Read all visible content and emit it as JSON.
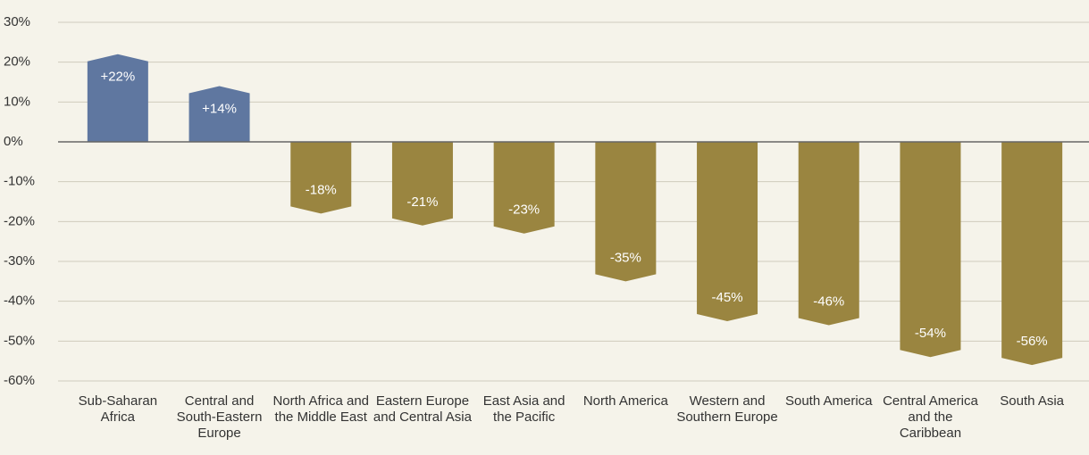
{
  "chart_data": {
    "type": "bar",
    "categories": [
      "Sub-Saharan Africa",
      "Central and South-Eastern Europe",
      "North Africa and the Middle East",
      "Eastern Europe and Central Asia",
      "East Asia and the Pacific",
      "North America",
      "Western and Southern Europe",
      "South America",
      "Central America and the Caribbean",
      "South Asia"
    ],
    "values": [
      22,
      14,
      -18,
      -21,
      -23,
      -35,
      -45,
      -46,
      -54,
      -56
    ],
    "value_labels": [
      "+22%",
      "+14%",
      "-18%",
      "-21%",
      "-23%",
      "-35%",
      "-45%",
      "-46%",
      "-54%",
      "-56%"
    ],
    "colors": [
      "#5f77a0",
      "#5f77a0",
      "#9a8540",
      "#9a8540",
      "#9a8540",
      "#9a8540",
      "#9a8540",
      "#9a8540",
      "#9a8540",
      "#9a8540"
    ],
    "ylim": [
      -60,
      30
    ],
    "yticks": [
      {
        "value": 30,
        "label": "30%"
      },
      {
        "value": 20,
        "label": "20%"
      },
      {
        "value": 10,
        "label": "10%"
      },
      {
        "value": 0,
        "label": "0%"
      },
      {
        "value": -10,
        "label": "-10%"
      },
      {
        "value": -20,
        "label": "-20%"
      },
      {
        "value": -30,
        "label": "-30%"
      },
      {
        "value": -40,
        "label": "-40%"
      },
      {
        "value": -50,
        "label": "-50%"
      },
      {
        "value": -60,
        "label": "-60%"
      }
    ],
    "grid": true
  }
}
